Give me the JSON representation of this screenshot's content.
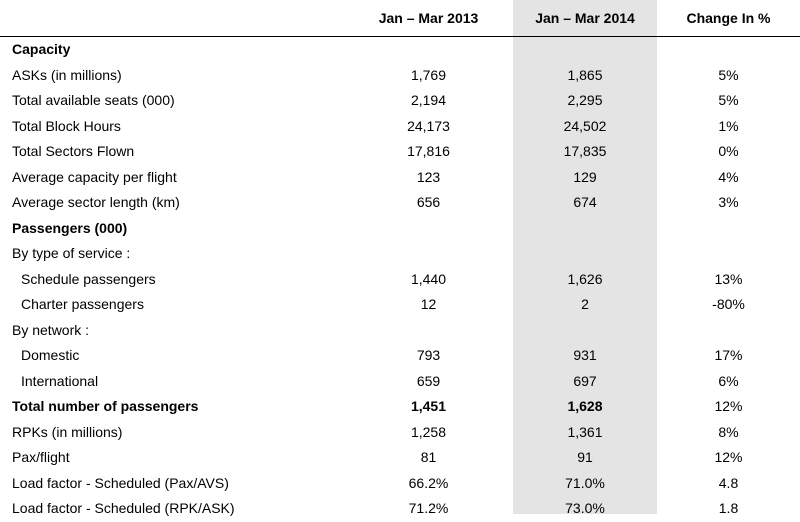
{
  "columns": [
    "Jan – Mar 2013",
    "Jan – Mar 2014",
    "Change In %"
  ],
  "highlight_color": "#e4e4e4",
  "rows": [
    {
      "label": "Capacity",
      "type": "section"
    },
    {
      "label": "ASKs (in millions)",
      "v2013": "1,769",
      "v2014": "1,865",
      "change": "5%"
    },
    {
      "label": "Total available seats (000)",
      "v2013": "2,194",
      "v2014": "2,295",
      "change": "5%"
    },
    {
      "label": "Total Block Hours",
      "v2013": "24,173",
      "v2014": "24,502",
      "change": "1%"
    },
    {
      "label": "Total Sectors Flown",
      "v2013": "17,816",
      "v2014": "17,835",
      "change": "0%"
    },
    {
      "label": "Average capacity per flight",
      "v2013": "123",
      "v2014": "129",
      "change": "4%"
    },
    {
      "label": "Average sector length (km)",
      "v2013": "656",
      "v2014": "674",
      "change": "3%"
    },
    {
      "label": "Passengers (000)",
      "type": "section"
    },
    {
      "label": "By type of service :",
      "type": "group"
    },
    {
      "label": "Schedule passengers",
      "v2013": "1,440",
      "v2014": "1,626",
      "change": "13%"
    },
    {
      "label": "Charter passengers",
      "v2013": "12",
      "v2014": "2",
      "change": "-80%"
    },
    {
      "label": "By network :",
      "type": "group"
    },
    {
      "label": "Domestic",
      "v2013": "793",
      "v2014": "931",
      "change": "17%"
    },
    {
      "label": "International",
      "v2013": "659",
      "v2014": "697",
      "change": "6%"
    },
    {
      "label": "Total number of passengers",
      "v2013": "1,451",
      "v2014": "1,628",
      "change": "12%",
      "type": "total"
    },
    {
      "label": "RPKs (in millions)",
      "v2013": "1,258",
      "v2014": "1,361",
      "change": "8%"
    },
    {
      "label": "Pax/flight",
      "v2013": "81",
      "v2014": "91",
      "change": "12%"
    },
    {
      "label": "Load factor  - Scheduled (Pax/AVS)",
      "v2013": "66.2%",
      "v2014": "71.0%",
      "change": "4.8"
    },
    {
      "label": "Load factor  - Scheduled (RPK/ASK)",
      "v2013": "71.2%",
      "v2014": "73.0%",
      "change": "1.8"
    }
  ]
}
